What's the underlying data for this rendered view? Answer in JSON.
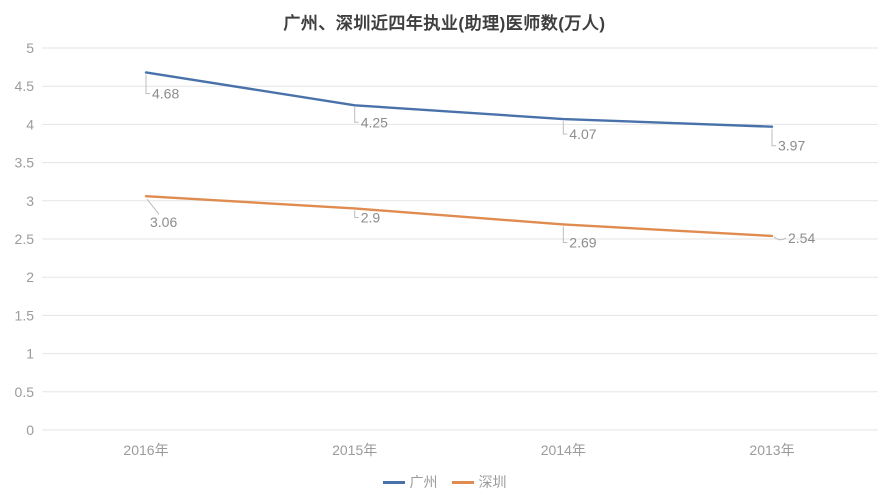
{
  "chart_data": {
    "type": "line",
    "title": "广州、深圳近四年执业(助理)医师数(万人)",
    "categories": [
      "2016年",
      "2015年",
      "2014年",
      "2013年"
    ],
    "series": [
      {
        "name": "广州",
        "color": "#4a72aa",
        "values": [
          4.68,
          4.25,
          4.07,
          3.97
        ],
        "labels": [
          "4.68",
          "4.25",
          "4.07",
          "3.97"
        ]
      },
      {
        "name": "深圳",
        "color": "#e08b4f",
        "values": [
          3.06,
          2.9,
          2.69,
          2.54
        ],
        "labels": [
          "3.06",
          "2.9",
          "2.69",
          "2.54"
        ]
      }
    ],
    "ylim": [
      0,
      5
    ],
    "ytick_step": 0.5,
    "yticks": [
      "0",
      "0.5",
      "1",
      "1.5",
      "2",
      "2.5",
      "3",
      "3.5",
      "4",
      "4.5",
      "5"
    ],
    "grid": "horizontal",
    "legend_position": "bottom",
    "label_color": "#8c8c8c",
    "tick_color": "#9b9b9b"
  }
}
